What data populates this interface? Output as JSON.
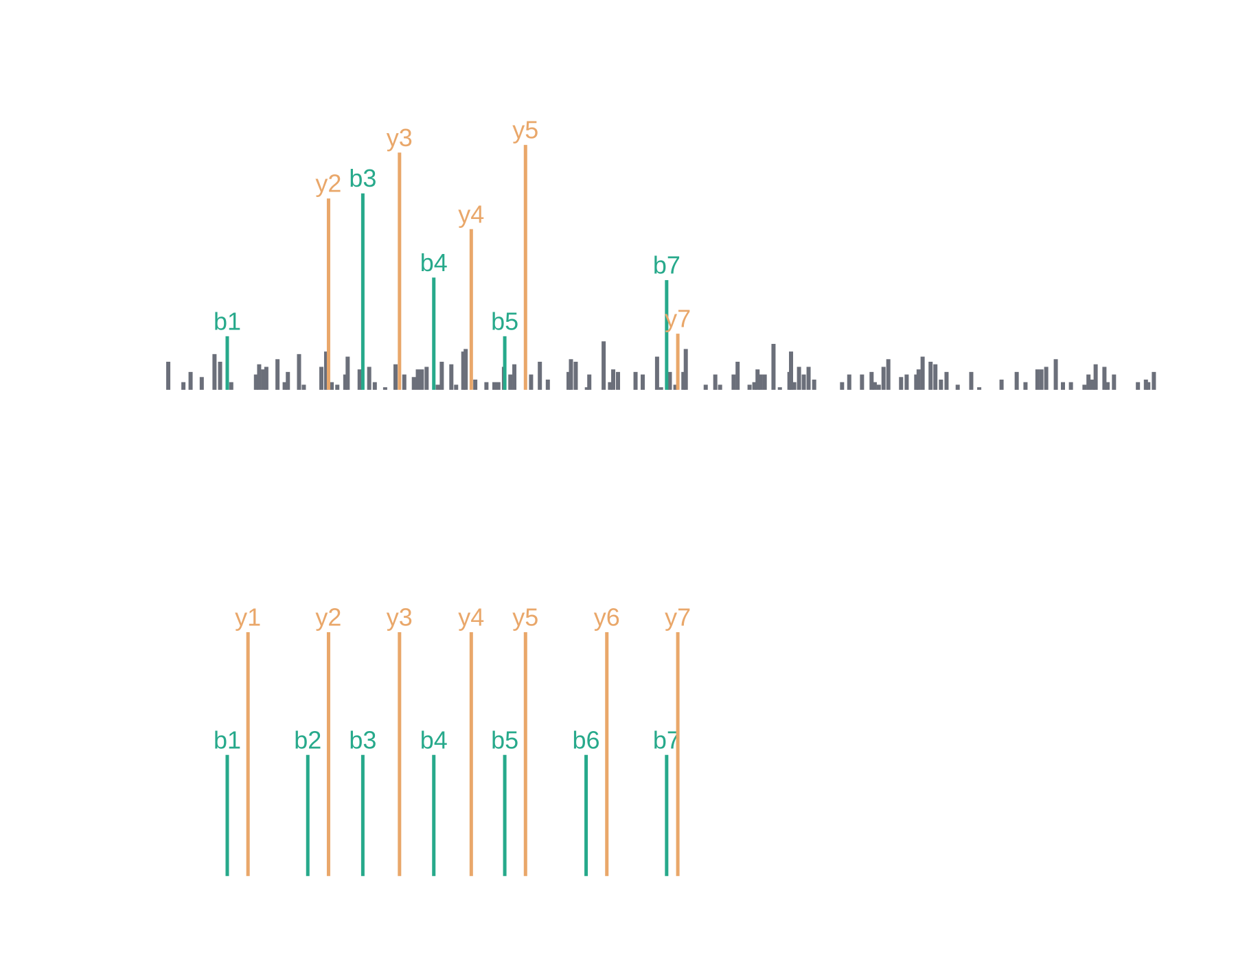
{
  "chart_data": [
    {
      "type": "spectrum",
      "xlim": [
        0,
        1300
      ],
      "ylim": [
        0,
        100
      ],
      "series": [
        {
          "color": "#6b6f7a",
          "x": [
            11,
            30,
            39,
            53,
            69,
            76,
            90,
            121,
            125,
            130,
            134,
            148,
            157,
            161,
            175,
            181,
            203,
            209,
            216,
            223,
            233,
            236,
            251,
            263,
            270,
            283,
            296,
            307,
            319,
            324,
            329,
            335,
            349,
            354,
            366,
            372,
            381,
            384,
            396,
            410,
            420,
            425,
            432,
            440,
            445,
            466,
            477,
            487,
            513,
            516,
            522,
            536,
            539,
            557,
            565,
            569,
            575,
            597,
            606,
            624,
            629,
            640,
            647,
            657,
            660,
            685,
            697,
            703,
            720,
            725,
            740,
            746,
            750,
            754,
            759,
            770,
            778,
            790,
            792,
            796,
            802,
            808,
            814,
            821,
            856,
            865,
            881,
            893,
            897,
            902,
            908,
            914,
            930,
            937,
            949,
            952,
            957,
            967,
            973,
            980,
            987,
            1001,
            1018,
            1028,
            1056,
            1075,
            1086,
            1101,
            1106,
            1112,
            1124,
            1133,
            1143,
            1160,
            1165,
            1170,
            1174,
            1185,
            1189,
            1197,
            1227,
            1237,
            1240,
            1247
          ],
          "values": [
            11,
            3,
            7,
            5,
            14,
            11,
            3,
            6,
            10,
            8,
            9,
            12,
            3,
            7,
            14,
            2,
            9,
            15,
            3,
            2,
            6,
            13,
            8,
            9,
            3,
            1,
            10,
            6,
            5,
            8,
            8,
            9,
            2,
            11,
            10,
            2,
            15,
            16,
            4,
            3,
            3,
            3,
            9,
            6,
            10,
            6,
            11,
            4,
            7,
            12,
            11,
            1,
            6,
            19,
            3,
            8,
            7,
            7,
            6,
            13,
            1,
            7,
            2,
            7,
            16,
            2,
            6,
            2,
            6,
            11,
            2,
            3,
            8,
            6,
            6,
            18,
            1,
            7,
            15,
            3,
            9,
            6,
            9,
            4,
            3,
            6,
            6,
            7,
            3,
            2,
            9,
            12,
            5,
            6,
            6,
            8,
            13,
            11,
            10,
            4,
            7,
            2,
            7,
            1,
            4,
            7,
            3,
            8,
            8,
            9,
            12,
            3,
            3,
            2,
            6,
            4,
            10,
            9,
            3,
            6,
            3,
            4,
            3,
            7
          ]
        },
        {
          "color": "#27a98b",
          "x": [
            85,
            255,
            344,
            433,
            636
          ],
          "values": [
            21,
            77,
            44,
            21,
            43
          ],
          "labels": [
            "b1",
            "b3",
            "b4",
            "b5",
            "b7"
          ]
        },
        {
          "color": "#e9a76a",
          "x": [
            212,
            301,
            391,
            459,
            650
          ],
          "values": [
            75,
            93,
            63,
            96,
            22
          ],
          "labels": [
            "y2",
            "y3",
            "y4",
            "y5",
            "y7"
          ]
        }
      ]
    },
    {
      "type": "spectrum",
      "xlim": [
        0,
        1300
      ],
      "ylim": [
        0,
        100
      ],
      "series": [
        {
          "color": "#27a98b",
          "x": [
            85,
            186,
            255,
            344,
            433,
            535,
            636
          ],
          "values": [
            47.5,
            47.5,
            47.5,
            47.5,
            47.5,
            47.5,
            47.5
          ],
          "labels": [
            "b1",
            "b2",
            "b3",
            "b4",
            "b5",
            "b6",
            "b7"
          ]
        },
        {
          "color": "#e9a76a",
          "x": [
            111,
            212,
            301,
            391,
            459,
            561,
            650
          ],
          "values": [
            95.6,
            95.6,
            95.6,
            95.6,
            95.6,
            95.6,
            95.6
          ],
          "labels": [
            "y1",
            "y2",
            "y3",
            "y4",
            "y5",
            "y6",
            "y7"
          ]
        }
      ]
    }
  ]
}
